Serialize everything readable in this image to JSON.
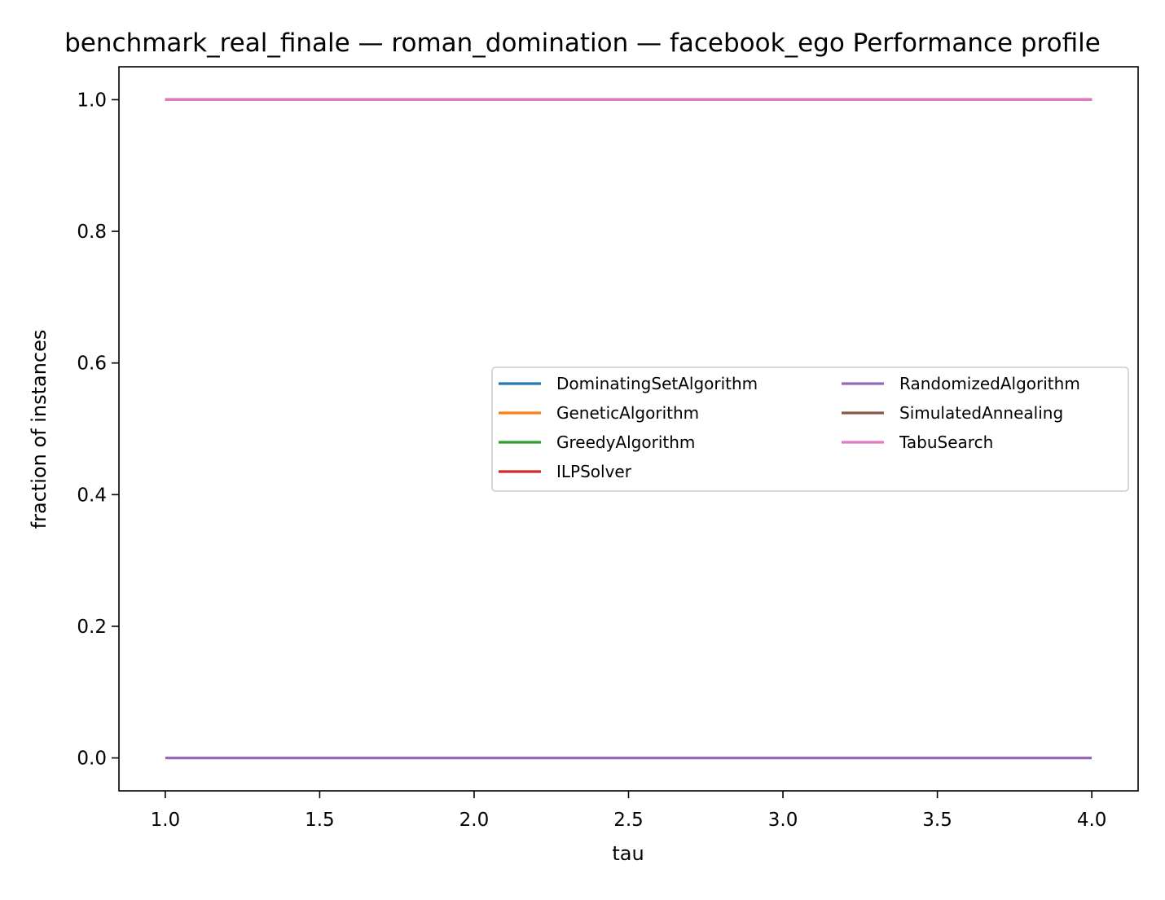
{
  "chart_data": {
    "type": "line",
    "title": "benchmark_real_finale — roman_domination — facebook_ego Performance profile",
    "xlabel": "tau",
    "ylabel": "fraction of instances",
    "xlim": [
      0.85,
      4.15
    ],
    "ylim": [
      -0.05,
      1.05
    ],
    "xticks": [
      "1.0",
      "1.5",
      "2.0",
      "2.5",
      "3.0",
      "3.5",
      "4.0"
    ],
    "yticks": [
      "0.0",
      "0.2",
      "0.4",
      "0.6",
      "0.8",
      "1.0"
    ],
    "grid": false,
    "legend_position": "center-right",
    "legend_columns": 2,
    "series": [
      {
        "name": "DominatingSetAlgorithm",
        "color": "#1f77b4",
        "x": [
          1.0,
          4.0
        ],
        "y": [
          1.0,
          1.0
        ]
      },
      {
        "name": "GeneticAlgorithm",
        "color": "#ff7f0e",
        "x": [
          1.0,
          4.0
        ],
        "y": [
          1.0,
          1.0
        ]
      },
      {
        "name": "GreedyAlgorithm",
        "color": "#2ca02c",
        "x": [
          1.0,
          4.0
        ],
        "y": [
          1.0,
          1.0
        ]
      },
      {
        "name": "ILPSolver",
        "color": "#d62728",
        "x": [
          1.0,
          4.0
        ],
        "y": [
          1.0,
          1.0
        ]
      },
      {
        "name": "RandomizedAlgorithm",
        "color": "#9467bd",
        "x": [
          1.0,
          4.0
        ],
        "y": [
          0.0,
          0.0
        ]
      },
      {
        "name": "SimulatedAnnealing",
        "color": "#8c564b",
        "x": [
          1.0,
          4.0
        ],
        "y": [
          1.0,
          1.0
        ]
      },
      {
        "name": "TabuSearch",
        "color": "#e377c2",
        "x": [
          1.0,
          4.0
        ],
        "y": [
          1.0,
          1.0
        ]
      }
    ]
  }
}
